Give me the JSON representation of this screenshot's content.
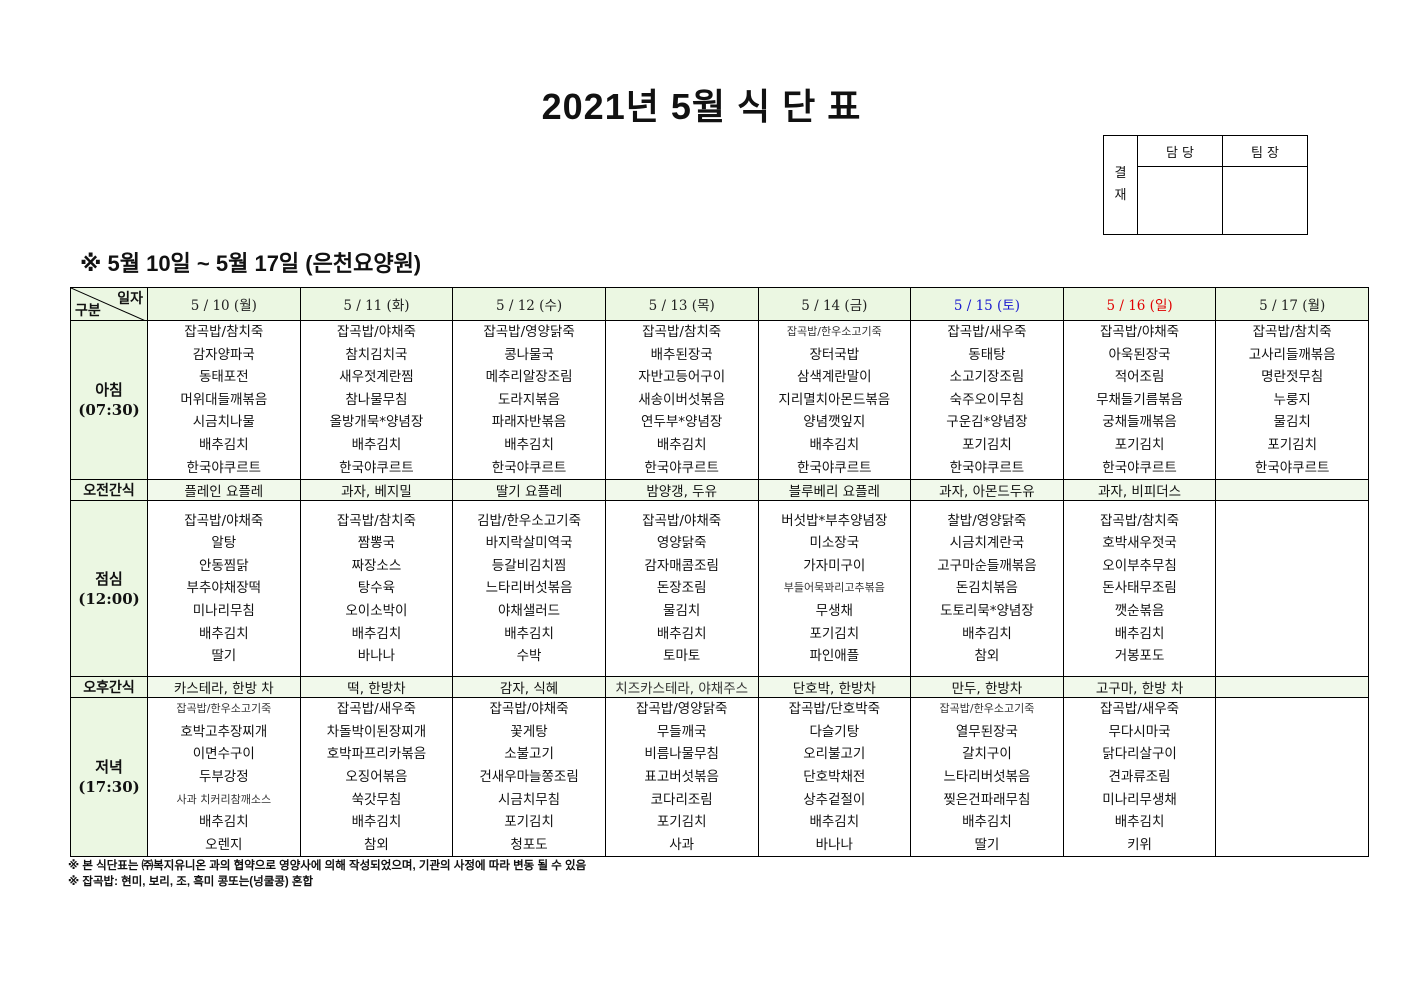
{
  "title": "2021년 5월 식 단 표",
  "approval": {
    "side_label_1": "결",
    "side_label_2": "재",
    "col1": "담 당",
    "col2": "팀 장"
  },
  "subtitle": "※ 5월 10일 ~ 5월 17일 (은천요양원)",
  "corner": {
    "top": "일자",
    "bottom": "구분"
  },
  "colors": {
    "header_bg": "#ebf7e2",
    "saturday": "#1a1ad0",
    "sunday": "#e00000",
    "weekday": "#222222"
  },
  "days": [
    {
      "label": "5 / 10 (월)",
      "type": "weekday"
    },
    {
      "label": "5 / 11 (화)",
      "type": "weekday"
    },
    {
      "label": "5 / 12 (수)",
      "type": "weekday"
    },
    {
      "label": "5 / 13 (목)",
      "type": "weekday"
    },
    {
      "label": "5 / 14 (금)",
      "type": "weekday"
    },
    {
      "label": "5 / 15 (토)",
      "type": "saturday"
    },
    {
      "label": "5 / 16 (일)",
      "type": "sunday"
    },
    {
      "label": "5 / 17 (월)",
      "type": "weekday"
    }
  ],
  "rows": [
    {
      "kind": "meal",
      "name": "아침",
      "time": "(07:30)",
      "cells": [
        [
          "잡곡밥/참치죽",
          "감자양파국",
          "동태포전",
          "머위대들깨볶음",
          "시금치나물",
          "배추김치",
          "한국야쿠르트"
        ],
        [
          "잡곡밥/야채죽",
          "참치김치국",
          "새우젓계란찜",
          "참나물무침",
          "올방개묵*양념장",
          "배추김치",
          "한국야쿠르트"
        ],
        [
          "잡곡밥/영양닭죽",
          "콩나물국",
          "메추리알장조림",
          "도라지볶음",
          "파래자반볶음",
          "배추김치",
          "한국야쿠르트"
        ],
        [
          "잡곡밥/참치죽",
          "배추된장국",
          "자반고등어구이",
          "새송이버섯볶음",
          "연두부*양념장",
          "배추김치",
          "한국야쿠르트"
        ],
        [
          "잡곡밥/한우소고기죽",
          "장터국밥",
          "삼색계란말이",
          "지리멸치아몬드볶음",
          "양념깻잎지",
          "배추김치",
          "한국야쿠르트"
        ],
        [
          "잡곡밥/새우죽",
          "동태탕",
          "소고기장조림",
          "숙주오이무침",
          "구운김*양념장",
          "포기김치",
          "한국야쿠르트"
        ],
        [
          "잡곡밥/야채죽",
          "아욱된장국",
          "적어조림",
          "무채들기름볶음",
          "궁채들깨볶음",
          "포기김치",
          "한국야쿠르트"
        ],
        [
          "잡곡밥/참치죽",
          "고사리들깨볶음",
          "명란젓무침",
          "누룽지",
          "물김치",
          "포기김치",
          "한국야쿠르트"
        ]
      ]
    },
    {
      "kind": "snack",
      "name": "오전간식",
      "cells": [
        "플레인 요플레",
        "과자, 베지밀",
        "딸기 요플레",
        "밤양갱, 두유",
        "블루베리 요플레",
        "과자, 아몬드두유",
        "과자, 비피더스",
        ""
      ]
    },
    {
      "kind": "meal",
      "name": "점심",
      "time": "(12:00)",
      "cells": [
        [
          "잡곡밥/야채죽",
          "알탕",
          "안동찜닭",
          "부추야채장떡",
          "미나리무침",
          "배추김치",
          "딸기"
        ],
        [
          "잡곡밥/참치죽",
          "짬뽕국",
          "짜장소스",
          "탕수육",
          "오이소박이",
          "배추김치",
          "바나나"
        ],
        [
          "김밥/한우소고기죽",
          "바지락살미역국",
          "등갈비김치찜",
          "느타리버섯볶음",
          "야채샐러드",
          "배추김치",
          "수박"
        ],
        [
          "잡곡밥/야채죽",
          "영양닭죽",
          "감자매콤조림",
          "돈장조림",
          "물김치",
          "배추김치",
          "토마토"
        ],
        [
          "버섯밥*부추양념장",
          "미소장국",
          "가자미구이",
          "부들어묵꽈리고추볶음",
          "무생채",
          "포기김치",
          "파인애플"
        ],
        [
          "찰밥/영양닭죽",
          "시금치계란국",
          "고구마순들깨볶음",
          "돈김치볶음",
          "도토리묵*양념장",
          "배추김치",
          "참외"
        ],
        [
          "잡곡밥/참치죽",
          "호박새우젓국",
          "오이부추무침",
          "돈사태무조림",
          "깻순볶음",
          "배추김치",
          "거봉포도"
        ],
        []
      ]
    },
    {
      "kind": "snack",
      "name": "오후간식",
      "cells": [
        "카스테라, 한방 차",
        "떡, 한방차",
        "감자, 식혜",
        "치즈카스테라, 야채주스",
        "단호박, 한방차",
        "만두, 한방차",
        "고구마, 한방 차",
        ""
      ]
    },
    {
      "kind": "meal",
      "name": "저녁",
      "time": "(17:30)",
      "cells": [
        [
          "잡곡밥/한우소고기죽",
          "호박고추장찌개",
          "이면수구이",
          "두부강정",
          "사과 치커리참깨소스",
          "배추김치",
          "오렌지"
        ],
        [
          "잡곡밥/새우죽",
          "차돌박이된장찌개",
          "호박파프리카볶음",
          "오징어볶음",
          "쑥갓무침",
          "배추김치",
          "참외"
        ],
        [
          "잡곡밥/야채죽",
          "꽃게탕",
          "소불고기",
          "건새우마늘쫑조림",
          "시금치무침",
          "포기김치",
          "청포도"
        ],
        [
          "잡곡밥/영양닭죽",
          "무들깨국",
          "비름나물무침",
          "표고버섯볶음",
          "코다리조림",
          "포기김치",
          "사과"
        ],
        [
          "잡곡밥/단호박죽",
          "다슬기탕",
          "오리불고기",
          "단호박채전",
          "상추겉절이",
          "배추김치",
          "바나나"
        ],
        [
          "잡곡밥/한우소고기죽",
          "열무된장국",
          "갈치구이",
          "느타리버섯볶음",
          "찢은건파래무침",
          "배추김치",
          "딸기"
        ],
        [
          "잡곡밥/새우죽",
          "무다시마국",
          "닭다리살구이",
          "견과류조림",
          "미나리무생채",
          "배추김치",
          "키위"
        ],
        []
      ]
    }
  ],
  "footnotes": [
    "※ 본 식단표는 ㈜복지유니온 과의 협약으로 영양사에 의해 작성되었으며, 기관의 사정에 따라 변동 될 수 있음",
    "※ 잡곡밥: 현미, 보리, 조, 흑미 콩또는(넝쿨콩) 혼합"
  ]
}
